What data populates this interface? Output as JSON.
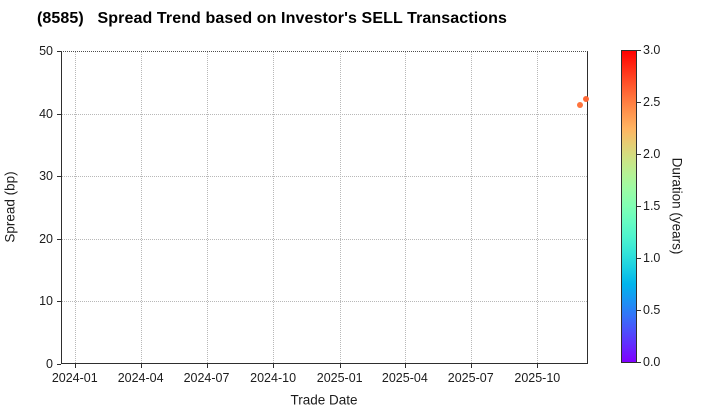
{
  "title": "(8585)   Spread Trend based on Investor's SELL Transactions",
  "chart_data": {
    "type": "scatter",
    "title": "(8585)   Spread Trend based on Investor's SELL Transactions",
    "xlabel": "Trade Date",
    "ylabel": "Spread (bp)",
    "colorbar_label": "Duration (years)",
    "colormap": "rainbow",
    "grid": true,
    "xlim": [
      "2023-12-13",
      "2025-12-10"
    ],
    "ylim": [
      0,
      50
    ],
    "colorbar_lim": [
      0.0,
      3.0
    ],
    "x_tick_labels": [
      "2024-01",
      "2024-04",
      "2024-07",
      "2024-10",
      "2025-01",
      "2025-04",
      "2025-07",
      "2025-10"
    ],
    "y_tick_labels": [
      "0",
      "10",
      "20",
      "30",
      "40",
      "50"
    ],
    "colorbar_tick_labels": [
      "0.0",
      "0.5",
      "1.0",
      "1.5",
      "2.0",
      "2.5",
      "3.0"
    ],
    "points": [
      {
        "date": "2025-11-28",
        "spread_bp": 41.5,
        "duration_years": 2.55
      },
      {
        "date": "2025-12-06",
        "spread_bp": 42.5,
        "duration_years": 2.6
      }
    ]
  }
}
